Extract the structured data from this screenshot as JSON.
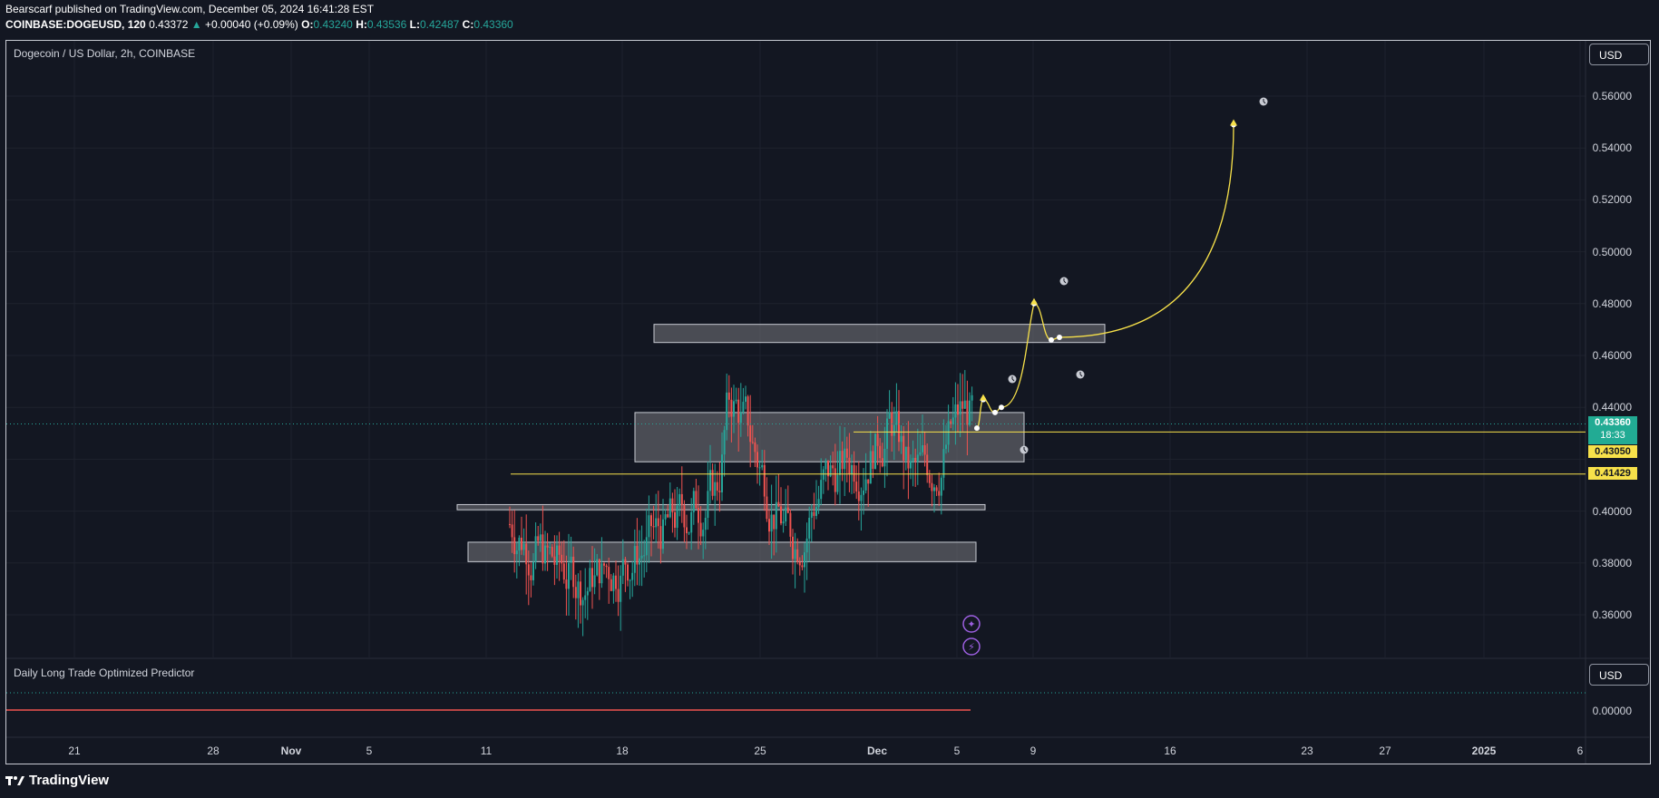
{
  "header": {
    "publisher_line": "Bearscarf published on TradingView.com, December 05, 2024 16:41:28 EST",
    "symbol": "COINBASE:DOGEUSD",
    "interval": "120",
    "last": "0.43372",
    "change": "+0.00040 (+0.09%)",
    "o_label": "O:",
    "o_value": "0.43240",
    "h_label": "H:",
    "h_value": "0.43536",
    "l_label": "L:",
    "l_value": "0.42487",
    "c_label": "C:",
    "c_value": "0.43360"
  },
  "chart_title": "Dogecoin / US Dollar, 2h, COINBASE",
  "currency_button": "USD",
  "indicator": {
    "title": "Daily Long Trade Optimized Predictor",
    "currency_button": "USD",
    "tick": "0.00000"
  },
  "price_ticks": [
    "0.56000",
    "0.54000",
    "0.52000",
    "0.50000",
    "0.48000",
    "0.46000",
    "0.44000",
    "0.42000",
    "0.40000",
    "0.38000",
    "0.36000"
  ],
  "date_ticks": [
    {
      "label": "21",
      "bold": false
    },
    {
      "label": "28",
      "bold": false
    },
    {
      "label": "Nov",
      "bold": true
    },
    {
      "label": "5",
      "bold": false
    },
    {
      "label": "11",
      "bold": false
    },
    {
      "label": "18",
      "bold": false
    },
    {
      "label": "25",
      "bold": false
    },
    {
      "label": "Dec",
      "bold": true
    },
    {
      "label": "5",
      "bold": false
    },
    {
      "label": "9",
      "bold": false
    },
    {
      "label": "16",
      "bold": false
    },
    {
      "label": "23",
      "bold": false
    },
    {
      "label": "27",
      "bold": false
    },
    {
      "label": "2025",
      "bold": true
    },
    {
      "label": "6",
      "bold": false
    }
  ],
  "price_badge": {
    "price": "0.43360",
    "countdown": "18:33"
  },
  "level_badges": [
    "0.43050",
    "0.41429"
  ],
  "chart_data": {
    "type": "candlestick",
    "title": "Dogecoin / US Dollar, 2h, COINBASE",
    "y_range": [
      0.34,
      0.58
    ],
    "horizontal_levels": [
      0.4305,
      0.41429
    ],
    "last_price": 0.4336,
    "zones": [
      {
        "low": 0.465,
        "high": 0.472
      },
      {
        "low": 0.419,
        "high": 0.438
      },
      {
        "low": 0.4005,
        "high": 0.4025
      },
      {
        "low": 0.3805,
        "high": 0.388
      }
    ],
    "projected_path": [
      0.432,
      0.443,
      0.438,
      0.44,
      0.48,
      0.466,
      0.467,
      0.549
    ],
    "price_bounds": {
      "low": 0.343,
      "high": 0.481
    }
  },
  "colors": {
    "background": "#131722",
    "up": "#26a69a",
    "down": "#ef5350",
    "projection": "#f7e14a",
    "zone_fill": "#5d5f66",
    "badge_green": "#22ab94",
    "badge_yellow": "#f7e14a"
  },
  "icons": {
    "up_arrow": "triangle-up-icon",
    "clock": "clock-icon",
    "star": "sparkle-icon",
    "bolt": "lightning-icon",
    "logo": "tradingview-logo-icon"
  },
  "footer": {
    "brand": "TradingView"
  }
}
